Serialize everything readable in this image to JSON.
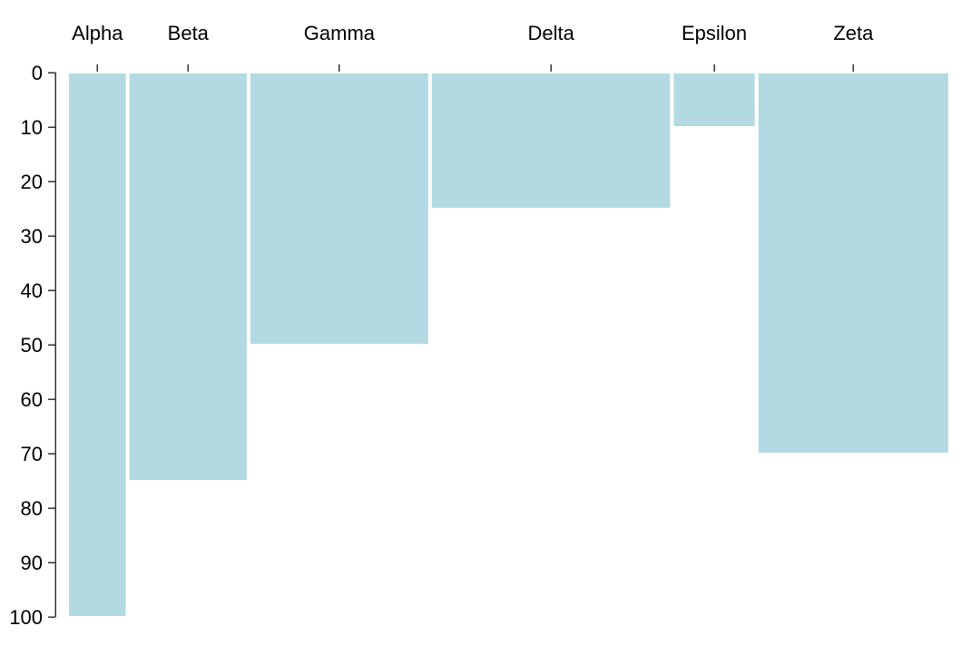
{
  "chart_data": {
    "type": "bar",
    "orientation": "vertical-downward",
    "x_axis_position": "top",
    "y_axis_inverted": true,
    "categories": [
      "Alpha",
      "Beta",
      "Gamma",
      "Delta",
      "Epsilon",
      "Zeta"
    ],
    "values": [
      100,
      75,
      50,
      25,
      10,
      70
    ],
    "width_weights": [
      100,
      200,
      300,
      400,
      140,
      320
    ],
    "ylim": [
      0,
      100
    ],
    "yticks": [
      0,
      10,
      20,
      30,
      40,
      50,
      60,
      70,
      80,
      90,
      100
    ],
    "bar_color": "#b3dae3",
    "grid": false,
    "legend": "none"
  }
}
